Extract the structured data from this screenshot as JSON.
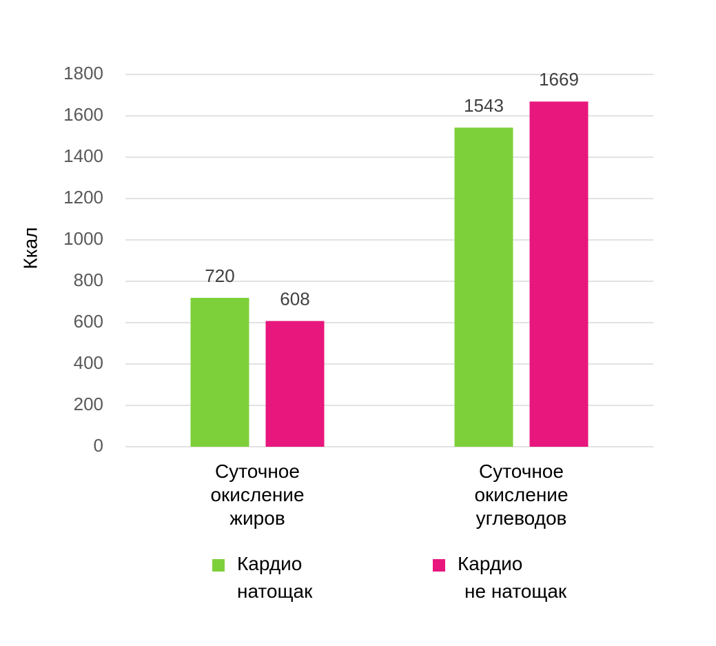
{
  "chart_data": {
    "type": "bar",
    "y_label": "Ккал",
    "categories": [
      "Суточное окисление жиров",
      "Суточное окисление углеводов"
    ],
    "series": [
      {
        "name": "Кардио натощак",
        "color": "#7ed03b",
        "values": [
          720,
          1543
        ]
      },
      {
        "name": "Кардио не натощак",
        "color": "#e8177d",
        "values": [
          608,
          1669
        ]
      }
    ],
    "ylim": [
      0,
      1800
    ],
    "yticks": [
      0,
      200,
      400,
      600,
      800,
      1000,
      1200,
      1400,
      1600,
      1800
    ],
    "grid": true
  }
}
